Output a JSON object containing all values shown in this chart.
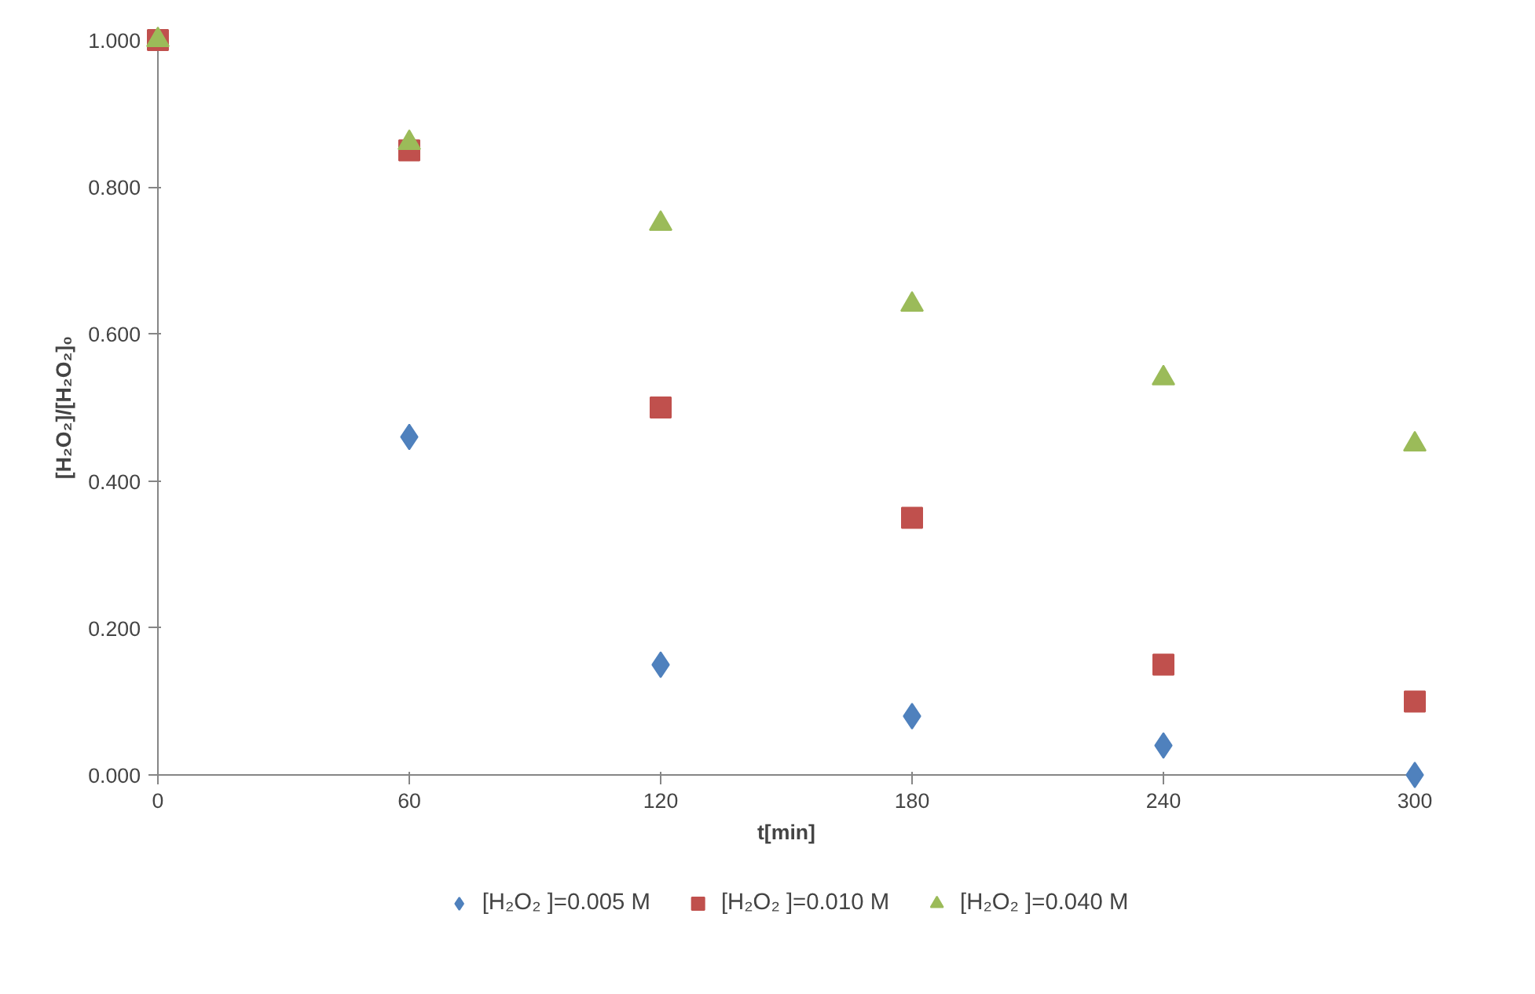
{
  "chart_data": {
    "type": "scatter",
    "xlabel": "t[min]",
    "ylabel": "[H₂O₂]/[H₂O₂]₀",
    "x": [
      0,
      60,
      120,
      180,
      240,
      300
    ],
    "series": [
      {
        "name": "[H₂O₂ ]=0.005 M",
        "color": "#4f81bd",
        "marker": "diamond",
        "values": [
          null,
          0.46,
          0.15,
          0.08,
          0.04,
          0.0
        ]
      },
      {
        "name": "[H₂O₂ ]=0.010 M",
        "color": "#c0504d",
        "marker": "square",
        "values": [
          1.0,
          0.85,
          0.5,
          0.35,
          0.15,
          0.1
        ]
      },
      {
        "name": "[H₂O₂ ]=0.040 M",
        "color": "#9bbb59",
        "marker": "triangle",
        "values": [
          1.0,
          0.86,
          0.75,
          0.64,
          0.54,
          0.45
        ]
      }
    ],
    "xlim": [
      0,
      300
    ],
    "xticks": [
      0,
      60,
      120,
      180,
      240,
      300
    ],
    "ylim": [
      0,
      1.0
    ],
    "yticks": [
      {
        "value": 0,
        "label": "0.000"
      },
      {
        "value": 0.2,
        "label": "0.200"
      },
      {
        "value": 0.4,
        "label": "0.400"
      },
      {
        "value": 0.6,
        "label": "0.600"
      },
      {
        "value": 0.8,
        "label": "0.800"
      },
      {
        "value": 1.0,
        "label": "1.000"
      }
    ],
    "grid": false,
    "legend": "bottom"
  }
}
